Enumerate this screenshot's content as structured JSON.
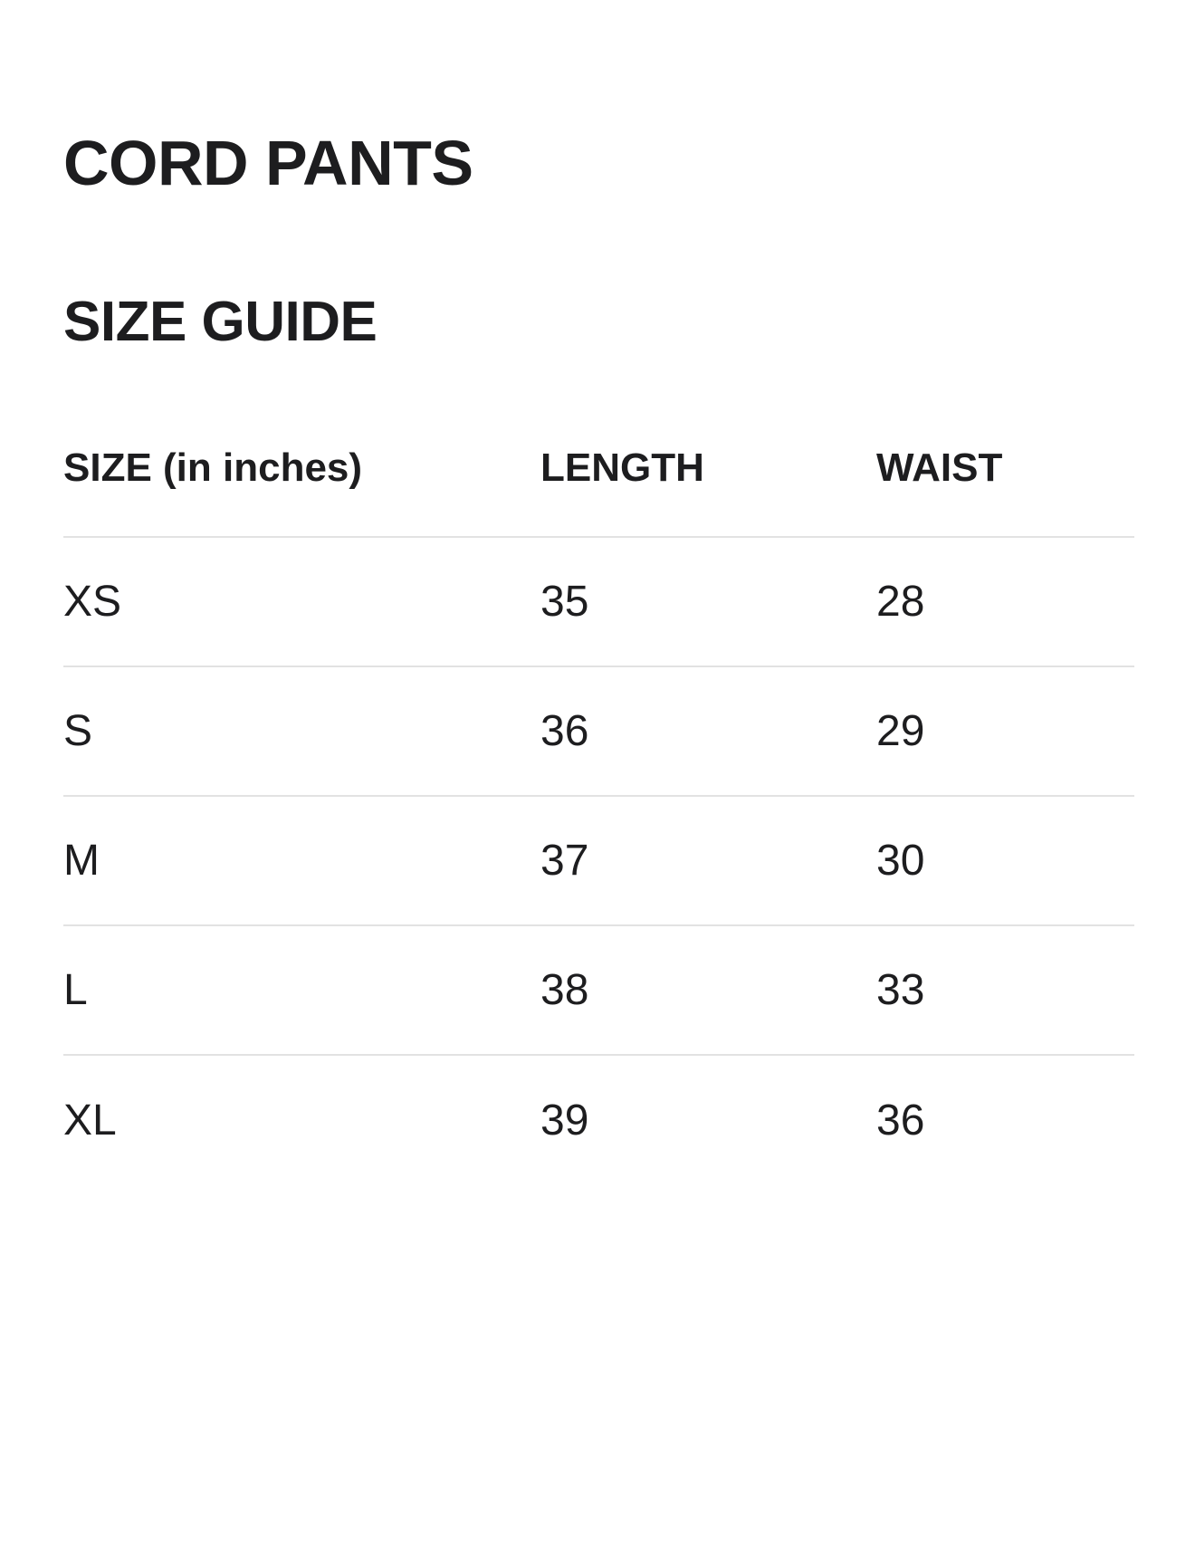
{
  "page": {
    "title": "CORD PANTS",
    "heading": "SIZE GUIDE"
  },
  "table": {
    "columns": [
      "SIZE (in inches)",
      "LENGTH",
      "WAIST"
    ],
    "rows": [
      {
        "size": "XS",
        "length": "35",
        "waist": "28"
      },
      {
        "size": "S",
        "length": "36",
        "waist": "29"
      },
      {
        "size": "M",
        "length": "37",
        "waist": "30"
      },
      {
        "size": "L",
        "length": "38",
        "waist": "33"
      },
      {
        "size": "XL",
        "length": "39",
        "waist": "36"
      }
    ]
  },
  "colors": {
    "text": "#1d1d1f",
    "divider": "#e2e2e2",
    "background": "#ffffff"
  }
}
